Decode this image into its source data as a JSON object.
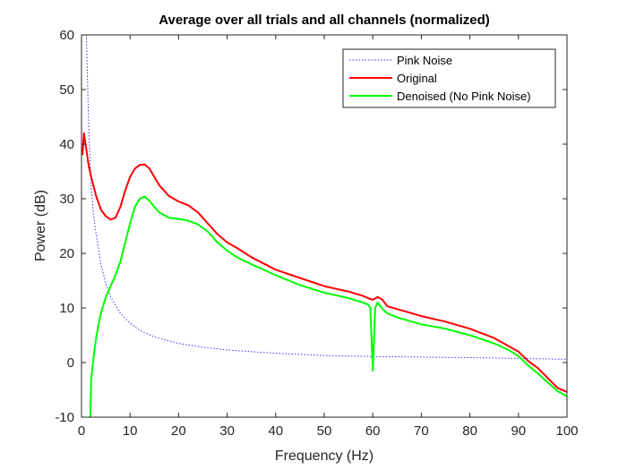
{
  "chart_data": {
    "type": "line",
    "title": "Average over all trials and all channels (normalized)",
    "xlabel": "Frequency (Hz)",
    "ylabel": "Power (dB)",
    "xlim": [
      0,
      100
    ],
    "ylim": [
      -10,
      60
    ],
    "xticks": [
      0,
      10,
      20,
      30,
      40,
      50,
      60,
      70,
      80,
      90,
      100
    ],
    "yticks": [
      -10,
      0,
      10,
      20,
      30,
      40,
      50,
      60
    ],
    "grid": false,
    "legend_position": "top-right",
    "series": [
      {
        "name": "Pink Noise",
        "color": "#3333ff",
        "style": "dotted",
        "x": [
          1,
          1.5,
          2,
          2.5,
          3,
          4,
          5,
          6,
          8,
          10,
          12,
          15,
          20,
          25,
          30,
          40,
          50,
          60,
          70,
          80,
          90,
          100
        ],
        "y": [
          60,
          43,
          32,
          27,
          23.5,
          18,
          14.5,
          12,
          9,
          7.2,
          5.9,
          4.7,
          3.5,
          2.8,
          2.3,
          1.7,
          1.3,
          1.1,
          1.0,
          0.9,
          0.75,
          0.6
        ]
      },
      {
        "name": "Original",
        "color": "#ff0000",
        "style": "solid",
        "x": [
          0.2,
          0.5,
          1,
          1.5,
          2,
          3,
          4,
          5,
          6,
          7,
          8,
          9,
          10,
          11,
          12,
          13,
          14,
          15,
          16,
          18,
          20,
          22,
          24,
          26,
          28,
          30,
          32,
          35,
          40,
          45,
          50,
          55,
          58,
          59,
          60,
          61,
          62,
          63,
          65,
          70,
          75,
          80,
          85,
          88,
          90,
          92,
          94,
          96,
          98,
          100
        ],
        "y": [
          38,
          42,
          39,
          36,
          34,
          30.5,
          28,
          26.8,
          26.2,
          26.5,
          28.5,
          31.5,
          34,
          35.5,
          36.2,
          36.3,
          35.5,
          34,
          32.5,
          30.5,
          29.5,
          28.8,
          27.5,
          25.5,
          23.5,
          22,
          21,
          19.3,
          17,
          15.5,
          14,
          13,
          12.2,
          11.8,
          11.5,
          12,
          11.5,
          10.3,
          9.8,
          8.5,
          7.5,
          6.2,
          4.5,
          3.0,
          2.0,
          0.3,
          -1.0,
          -2.8,
          -4.6,
          -5.4
        ]
      },
      {
        "name": "Denoised (No Pink Noise)",
        "color": "#00ff00",
        "style": "solid",
        "x": [
          1.8,
          2,
          2.5,
          3,
          3.5,
          4,
          5,
          6,
          7,
          8,
          9,
          10,
          11,
          12,
          13,
          14,
          15,
          16,
          18,
          20,
          22,
          24,
          26,
          28,
          30,
          32,
          35,
          40,
          45,
          50,
          55,
          58,
          59,
          59.5,
          60,
          60.5,
          61,
          62,
          63,
          65,
          70,
          75,
          80,
          85,
          88,
          90,
          92,
          94,
          96,
          98,
          100
        ],
        "y": [
          -10,
          -3,
          1,
          4.5,
          7,
          9,
          12,
          14,
          16,
          18.5,
          22,
          25.5,
          28.5,
          30,
          30.4,
          29.6,
          28.5,
          27.5,
          26.5,
          26.3,
          26,
          25.3,
          24,
          22,
          20.5,
          19.3,
          18,
          16,
          14.2,
          12.8,
          11.8,
          11.0,
          10.6,
          10.0,
          -1.5,
          10.0,
          11.0,
          9.8,
          9.0,
          8.3,
          7.0,
          6.2,
          5.0,
          3.5,
          2.3,
          1.2,
          -0.5,
          -2.0,
          -3.6,
          -5.2,
          -6.2
        ]
      }
    ]
  }
}
